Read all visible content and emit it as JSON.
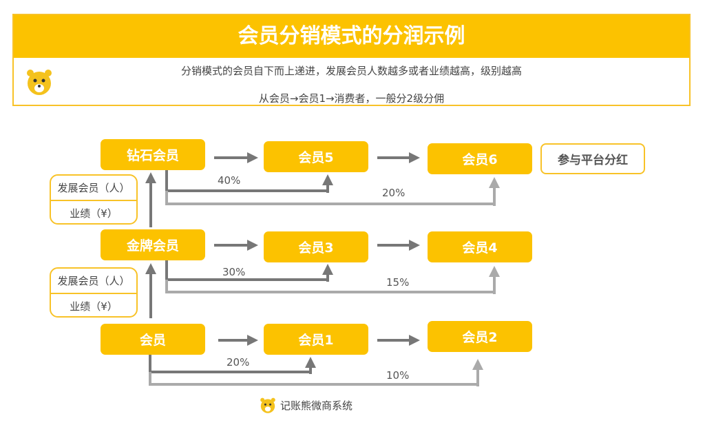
{
  "header": {
    "title": "会员分销模式的分润示例",
    "line1": "分销模式的会员自下而上递进，发展会员人数越多或者业绩越高，级别越高",
    "line2": "从会员→会员1→消费者，一般分2级分佣",
    "logo_icon": "bear-icon"
  },
  "nodes": {
    "diamond": "钻石会员",
    "m5": "会员5",
    "m6": "会员6",
    "platform": "参与平台分红",
    "gold": "金牌会员",
    "m3": "会员3",
    "m4": "会员4",
    "member": "会员",
    "m1": "会员1",
    "m2": "会员2"
  },
  "criteria": [
    {
      "a": "发展会员（人）",
      "b": "业绩（¥）"
    },
    {
      "a": "发展会员（人）",
      "b": "业绩（¥）"
    }
  ],
  "percents": {
    "d1": "40%",
    "d2": "20%",
    "g1": "30%",
    "g2": "15%",
    "m1": "20%",
    "m2": "10%"
  },
  "footer": {
    "brand": "记账熊微商系统",
    "logo_icon": "bear-icon"
  },
  "colors": {
    "accent": "#fcc200",
    "line_dark": "#777777",
    "line_light": "#aaaaaa"
  }
}
